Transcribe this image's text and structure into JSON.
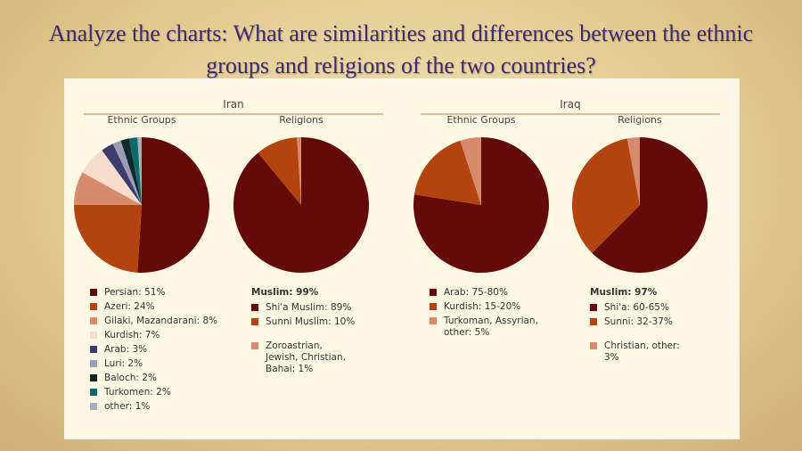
{
  "slide_title": "Analyze the charts: What are similarities and differences between the ethnic groups and religions of the two countries?",
  "countries": [
    "Iran",
    "Iraq"
  ],
  "chart_data": [
    {
      "type": "pie",
      "title": "Ethnic Groups",
      "categories": [
        "Persian: 51%",
        "Azeri: 24%",
        "Gilaki, Mazandarani: 8%",
        "Kurdish: 7%",
        "Arab: 3%",
        "Luri: 2%",
        "Baloch: 2%",
        "Turkomen: 2%",
        "other: 1%"
      ],
      "values": [
        51,
        24,
        8,
        7,
        3,
        2,
        2,
        2,
        1
      ],
      "colors": [
        "#640a08",
        "#b4440f",
        "#d88a6c",
        "#f6dccb",
        "#3d3c6e",
        "#9a9cb8",
        "#10292a",
        "#0b6b6a",
        "#a9b0b6"
      ]
    },
    {
      "type": "pie",
      "title": "Religions",
      "group_label": "Muslim: 99%",
      "categories": [
        "Shi'a Muslim: 89%",
        "Sunni Muslim: 10%",
        "Zoroastrian, Jewish, Christian, Bahai: 1%"
      ],
      "values": [
        89,
        10,
        1
      ],
      "colors": [
        "#640a08",
        "#b4440f",
        "#d88a6c"
      ]
    },
    {
      "type": "pie",
      "title": "Ethnic Groups",
      "categories": [
        "Arab: 75-80%",
        "Kurdish: 15-20%",
        "Turkoman, Assyrian, other: 5%"
      ],
      "values": [
        77.5,
        17.5,
        5
      ],
      "colors": [
        "#640a08",
        "#b4440f",
        "#d88a6c"
      ]
    },
    {
      "type": "pie",
      "title": "Religions",
      "group_label": "Muslim: 97%",
      "categories": [
        "Shi'a: 60-65%",
        "Sunni: 32-37%",
        "Christian, other: 3%"
      ],
      "values": [
        62.5,
        34.5,
        3
      ],
      "colors": [
        "#640a08",
        "#b4440f",
        "#d88a6c"
      ]
    }
  ]
}
